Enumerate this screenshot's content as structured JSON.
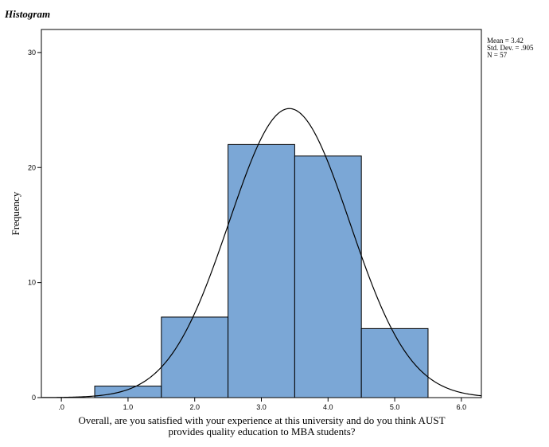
{
  "chart_data": {
    "type": "bar",
    "title": "Histogram",
    "xlabel_lines": [
      "Overall, are you satisfied with your experience at this university and do you think AUST",
      "provides quality education to  MBA students?"
    ],
    "ylabel": "Frequency",
    "x_ticks": [
      ".0",
      "1.0",
      "2.0",
      "3.0",
      "4.0",
      "5.0",
      "6.0"
    ],
    "y_ticks": [
      "0",
      "10",
      "20",
      "30"
    ],
    "xlim": [
      -0.3,
      6.3
    ],
    "ylim": [
      0,
      32
    ],
    "bins": [
      {
        "start": 0.5,
        "end": 1.5,
        "value": 1
      },
      {
        "start": 1.5,
        "end": 2.5,
        "value": 7
      },
      {
        "start": 2.5,
        "end": 3.5,
        "value": 22
      },
      {
        "start": 3.5,
        "end": 4.5,
        "value": 21
      },
      {
        "start": 4.5,
        "end": 5.5,
        "value": 6
      }
    ],
    "bar_color": "#7ba7d6",
    "normal_curve": {
      "mean": 3.42,
      "std": 0.905,
      "n": 57
    },
    "stats_lines": [
      "Mean = 3.42",
      "Std. Dev. = .905",
      "N = 57"
    ]
  }
}
